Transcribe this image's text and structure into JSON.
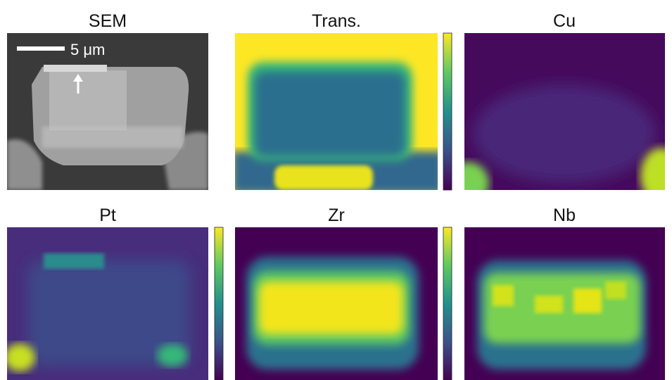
{
  "panels": [
    {
      "title": "SEM"
    },
    {
      "title": "Trans."
    },
    {
      "title": "Cu"
    },
    {
      "title": "Pt"
    },
    {
      "title": "Zr"
    },
    {
      "title": "Nb"
    }
  ],
  "scale_bar": {
    "label": "5 μm"
  }
}
